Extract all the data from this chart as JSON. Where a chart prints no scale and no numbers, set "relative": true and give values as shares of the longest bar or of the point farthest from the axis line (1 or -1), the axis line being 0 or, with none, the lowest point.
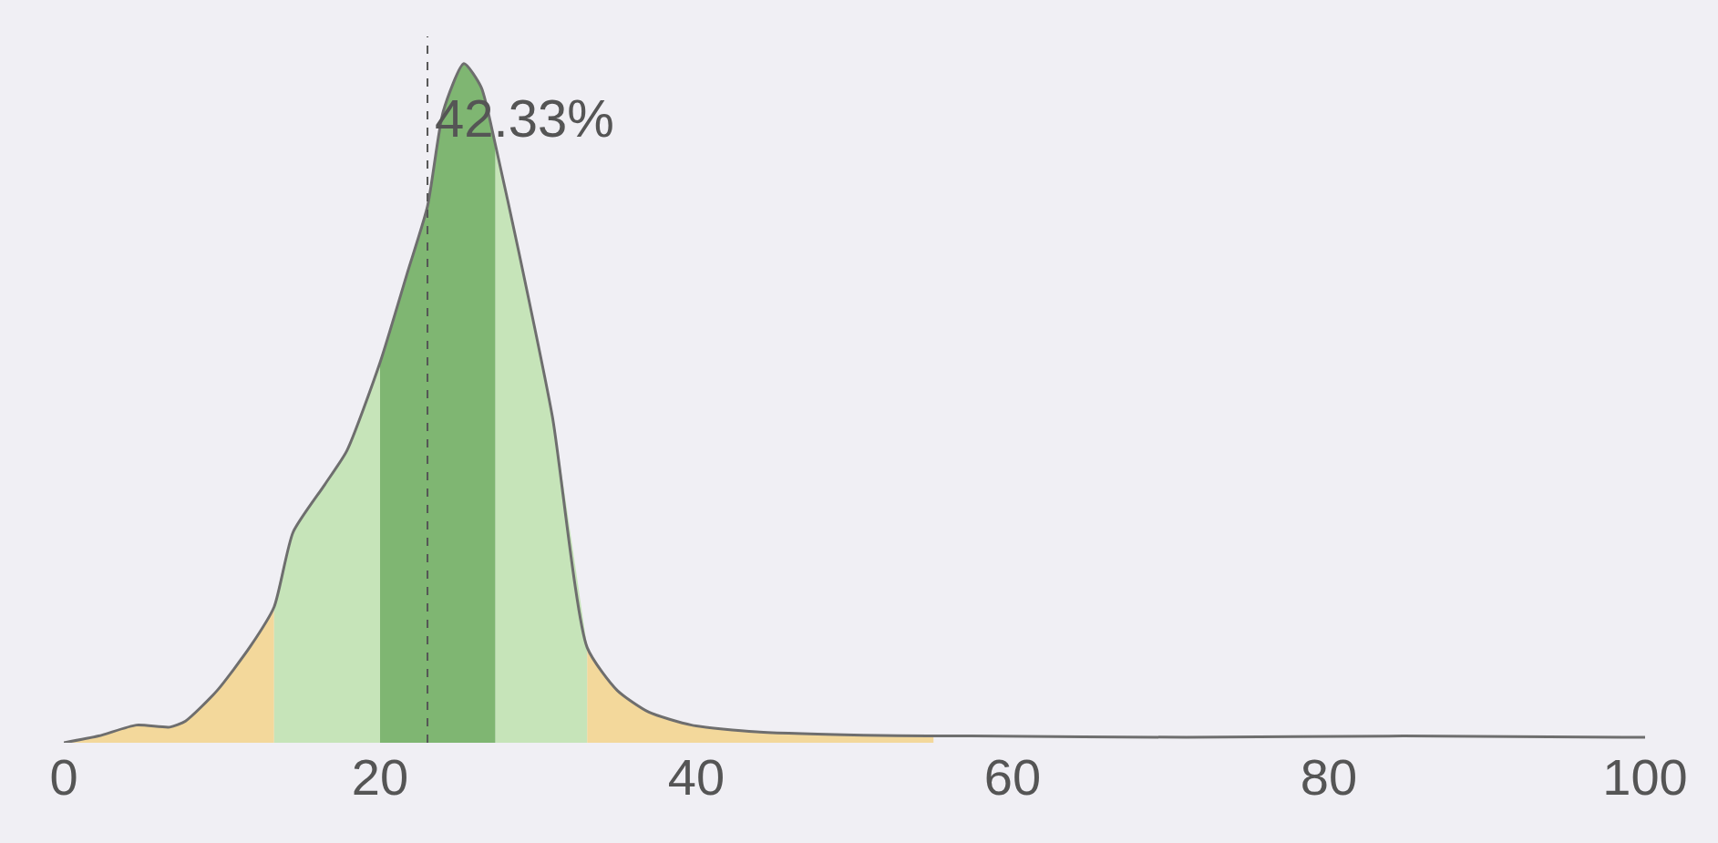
{
  "chart_data": {
    "type": "area",
    "relative": true,
    "xlim": [
      0,
      100
    ],
    "xticks": [
      0,
      20,
      40,
      60,
      80,
      100
    ],
    "series": [
      {
        "color": "#f3d89b",
        "x": [
          0,
          2.2,
          4.6,
          6.7,
          7.7,
          9.7,
          11.8,
          13.3
        ],
        "values": [
          0,
          0.01,
          0.026,
          0.023,
          0.032,
          0.077,
          0.142,
          0.2
        ]
      },
      {
        "color": "#c6e4b9",
        "x": [
          13.3,
          14.5,
          16.5,
          17.9,
          20
        ],
        "values": [
          0.2,
          0.31,
          0.38,
          0.43,
          0.56
        ]
      },
      {
        "color": "#7fb672",
        "x": [
          20,
          21.7,
          23,
          24,
          25.3,
          26.4,
          27.3
        ],
        "values": [
          0.56,
          0.69,
          0.79,
          0.93,
          1,
          0.965,
          0.88
        ]
      },
      {
        "color": "#c6e4b9",
        "x": [
          27.3,
          28.8,
          30.9,
          33.1
        ],
        "values": [
          0.88,
          0.72,
          0.48,
          0.14
        ]
      },
      {
        "color": "#f3d89b",
        "x": [
          33.1,
          35,
          37,
          39.7,
          43.8,
          50.6,
          55
        ],
        "values": [
          0.14,
          0.077,
          0.045,
          0.026,
          0.016,
          0.011,
          0.01
        ]
      },
      {
        "type": "line",
        "color": "#6e6e6e",
        "x": [
          0,
          2.2,
          4.6,
          6.7,
          7.7,
          9.7,
          11.8,
          13.3,
          14.5,
          16.5,
          17.9,
          20,
          21.7,
          23,
          24,
          25.3,
          26.4,
          27.3,
          28.8,
          30.9,
          33.1,
          35,
          37,
          39.7,
          43.8,
          50.6,
          55,
          57.4,
          71,
          84.7,
          100
        ],
        "values": [
          0,
          0.01,
          0.026,
          0.023,
          0.032,
          0.077,
          0.142,
          0.2,
          0.31,
          0.38,
          0.43,
          0.56,
          0.69,
          0.79,
          0.93,
          1,
          0.965,
          0.88,
          0.72,
          0.48,
          0.14,
          0.077,
          0.045,
          0.026,
          0.016,
          0.011,
          0.01,
          0.01,
          0.008,
          0.01,
          0.008
        ]
      }
    ],
    "ref_lines": [
      {
        "axis": "x",
        "value": 23,
        "line_style": "dashed",
        "color": "#555555"
      }
    ],
    "annotations": [
      {
        "text": "42.33%",
        "x": 23,
        "y": 0.92
      }
    ]
  }
}
